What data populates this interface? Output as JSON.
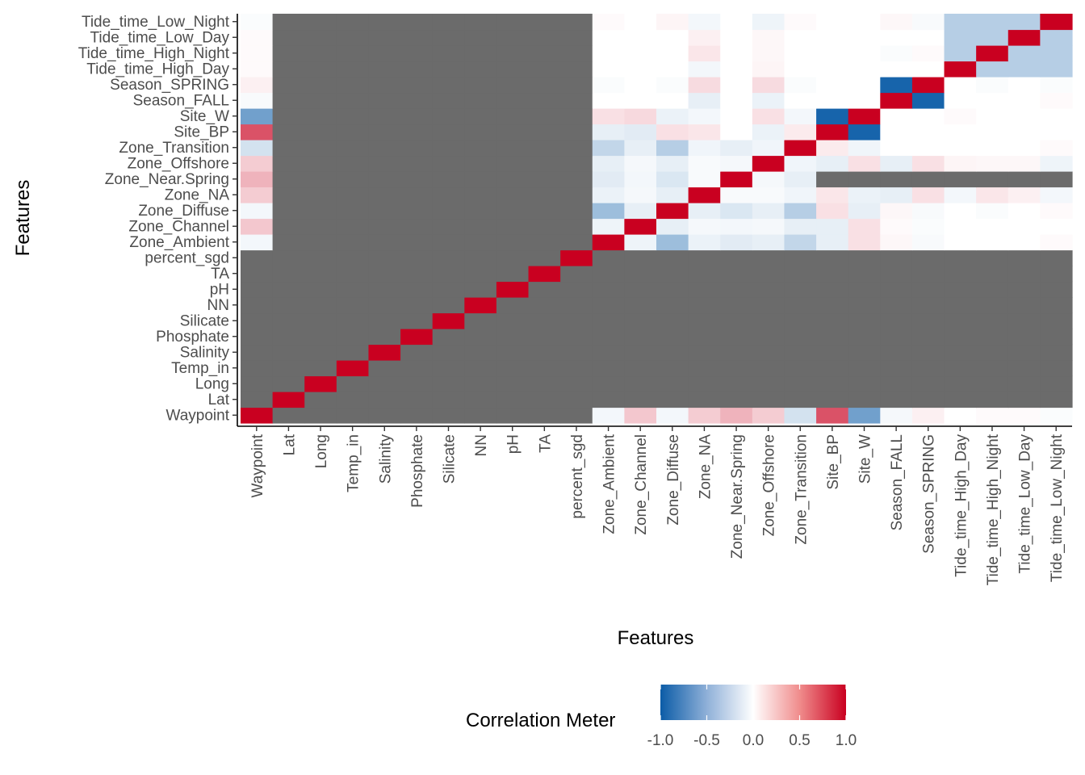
{
  "chart_data": {
    "type": "heatmap",
    "title": "",
    "xlabel": "Features",
    "ylabel": "Features",
    "x_categories": [
      "Waypoint",
      "Lat",
      "Long",
      "Temp_in",
      "Salinity",
      "Phosphate",
      "Silicate",
      "NN",
      "pH",
      "TA",
      "percent_sgd",
      "Zone_Ambient",
      "Zone_Channel",
      "Zone_Diffuse",
      "Zone_NA",
      "Zone_Near.Spring",
      "Zone_Offshore",
      "Zone_Transition",
      "Site_BP",
      "Site_W",
      "Season_FALL",
      "Season_SPRING",
      "Tide_time_High_Day",
      "Tide_time_High_Night",
      "Tide_time_Low_Day",
      "Tide_time_Low_Night"
    ],
    "y_categories": [
      "Waypoint",
      "Lat",
      "Long",
      "Temp_in",
      "Salinity",
      "Phosphate",
      "Silicate",
      "NN",
      "pH",
      "TA",
      "percent_sgd",
      "Zone_Ambient",
      "Zone_Channel",
      "Zone_Diffuse",
      "Zone_NA",
      "Zone_Near.Spring",
      "Zone_Offshore",
      "Zone_Transition",
      "Site_BP",
      "Site_W",
      "Season_FALL",
      "Season_SPRING",
      "Tide_time_High_Day",
      "Tide_time_High_Night",
      "Tide_time_Low_Day",
      "Tide_time_Low_Night"
    ],
    "na_color": "#6b6b6b",
    "na_note": "Cells with NA correlation drawn in dark grey; row/column order: y_categories bottom-to-top, x_categories left-to-right",
    "values": [
      [
        1.0,
        null,
        null,
        null,
        null,
        null,
        null,
        null,
        null,
        null,
        null,
        -0.05,
        0.22,
        -0.05,
        0.2,
        0.3,
        0.2,
        -0.18,
        0.68,
        -0.58,
        -0.04,
        0.06,
        0.0,
        0.02,
        0.02,
        -0.02
      ],
      [
        null,
        1.0,
        null,
        null,
        null,
        null,
        null,
        null,
        null,
        null,
        null,
        null,
        null,
        null,
        null,
        null,
        null,
        null,
        null,
        null,
        null,
        null,
        null,
        null,
        null,
        null
      ],
      [
        null,
        null,
        1.0,
        null,
        null,
        null,
        null,
        null,
        null,
        null,
        null,
        null,
        null,
        null,
        null,
        null,
        null,
        null,
        null,
        null,
        null,
        null,
        null,
        null,
        null,
        null
      ],
      [
        null,
        null,
        null,
        1.0,
        null,
        null,
        null,
        null,
        null,
        null,
        null,
        null,
        null,
        null,
        null,
        null,
        null,
        null,
        null,
        null,
        null,
        null,
        null,
        null,
        null,
        null
      ],
      [
        null,
        null,
        null,
        null,
        1.0,
        null,
        null,
        null,
        null,
        null,
        null,
        null,
        null,
        null,
        null,
        null,
        null,
        null,
        null,
        null,
        null,
        null,
        null,
        null,
        null,
        null
      ],
      [
        null,
        null,
        null,
        null,
        null,
        1.0,
        null,
        null,
        null,
        null,
        null,
        null,
        null,
        null,
        null,
        null,
        null,
        null,
        null,
        null,
        null,
        null,
        null,
        null,
        null,
        null
      ],
      [
        null,
        null,
        null,
        null,
        null,
        null,
        1.0,
        null,
        null,
        null,
        null,
        null,
        null,
        null,
        null,
        null,
        null,
        null,
        null,
        null,
        null,
        null,
        null,
        null,
        null,
        null
      ],
      [
        null,
        null,
        null,
        null,
        null,
        null,
        null,
        1.0,
        null,
        null,
        null,
        null,
        null,
        null,
        null,
        null,
        null,
        null,
        null,
        null,
        null,
        null,
        null,
        null,
        null,
        null
      ],
      [
        null,
        null,
        null,
        null,
        null,
        null,
        null,
        null,
        1.0,
        null,
        null,
        null,
        null,
        null,
        null,
        null,
        null,
        null,
        null,
        null,
        null,
        null,
        null,
        null,
        null,
        null
      ],
      [
        null,
        null,
        null,
        null,
        null,
        null,
        null,
        null,
        null,
        1.0,
        null,
        null,
        null,
        null,
        null,
        null,
        null,
        null,
        null,
        null,
        null,
        null,
        null,
        null,
        null,
        null
      ],
      [
        null,
        null,
        null,
        null,
        null,
        null,
        null,
        null,
        null,
        null,
        1.0,
        null,
        null,
        null,
        null,
        null,
        null,
        null,
        null,
        null,
        null,
        null,
        null,
        null,
        null,
        null
      ],
      [
        -0.05,
        null,
        null,
        null,
        null,
        null,
        null,
        null,
        null,
        null,
        null,
        1.0,
        -0.07,
        -0.4,
        -0.08,
        -0.12,
        -0.1,
        -0.25,
        -0.1,
        0.12,
        0.03,
        -0.03,
        0.0,
        0.0,
        0.0,
        0.02
      ],
      [
        0.22,
        null,
        null,
        null,
        null,
        null,
        null,
        null,
        null,
        null,
        null,
        -0.07,
        1.0,
        -0.1,
        -0.04,
        -0.05,
        -0.04,
        -0.1,
        -0.1,
        0.12,
        0.02,
        -0.02,
        0.0,
        0.0,
        0.0,
        0.0
      ],
      [
        -0.05,
        null,
        null,
        null,
        null,
        null,
        null,
        null,
        null,
        null,
        null,
        -0.4,
        -0.1,
        1.0,
        -0.1,
        -0.15,
        -0.1,
        -0.3,
        0.12,
        -0.1,
        0.03,
        -0.03,
        0.0,
        -0.02,
        0.0,
        0.02
      ],
      [
        0.2,
        null,
        null,
        null,
        null,
        null,
        null,
        null,
        null,
        null,
        null,
        -0.08,
        -0.04,
        -0.1,
        1.0,
        -0.03,
        -0.03,
        -0.06,
        0.1,
        -0.08,
        -0.1,
        0.12,
        -0.05,
        0.1,
        0.06,
        -0.05
      ],
      [
        0.3,
        null,
        null,
        null,
        null,
        null,
        null,
        null,
        null,
        null,
        null,
        -0.12,
        -0.05,
        -0.15,
        -0.03,
        1.0,
        -0.04,
        -0.1,
        null,
        null,
        null,
        null,
        null,
        null,
        null,
        null
      ],
      [
        0.2,
        null,
        null,
        null,
        null,
        null,
        null,
        null,
        null,
        null,
        null,
        -0.1,
        -0.04,
        -0.1,
        -0.03,
        -0.04,
        1.0,
        -0.06,
        -0.1,
        0.12,
        -0.1,
        0.12,
        0.04,
        0.03,
        0.03,
        -0.07
      ],
      [
        -0.18,
        null,
        null,
        null,
        null,
        null,
        null,
        null,
        null,
        null,
        null,
        -0.25,
        -0.1,
        -0.3,
        -0.06,
        -0.1,
        -0.06,
        1.0,
        0.08,
        -0.06,
        0.0,
        0.0,
        0.0,
        0.0,
        0.0,
        0.02
      ],
      [
        0.68,
        null,
        null,
        null,
        null,
        null,
        null,
        null,
        null,
        null,
        null,
        -0.1,
        -0.12,
        0.12,
        0.1,
        0.0,
        -0.08,
        0.08,
        1.0,
        -0.95,
        0.0,
        0.0,
        0.0,
        0.0,
        0.0,
        0.0
      ],
      [
        -0.58,
        null,
        null,
        null,
        null,
        null,
        null,
        null,
        null,
        null,
        null,
        0.12,
        0.15,
        -0.08,
        -0.05,
        0.0,
        0.12,
        -0.05,
        -0.95,
        1.0,
        0.0,
        0.0,
        0.02,
        0.0,
        0.0,
        0.0
      ],
      [
        -0.03,
        null,
        null,
        null,
        null,
        null,
        null,
        null,
        null,
        null,
        null,
        0.0,
        0.0,
        0.0,
        -0.1,
        0.0,
        -0.08,
        0.0,
        0.0,
        0.0,
        1.0,
        -0.95,
        0.0,
        0.0,
        0.0,
        0.02
      ],
      [
        0.06,
        null,
        null,
        null,
        null,
        null,
        null,
        null,
        null,
        null,
        null,
        -0.02,
        0.0,
        -0.02,
        0.14,
        0.0,
        0.14,
        -0.02,
        0.0,
        0.0,
        -0.95,
        1.0,
        0.0,
        -0.02,
        0.0,
        -0.02
      ],
      [
        0.02,
        null,
        null,
        null,
        null,
        null,
        null,
        null,
        null,
        null,
        null,
        0.0,
        0.0,
        0.0,
        -0.05,
        0.0,
        0.04,
        0.0,
        0.0,
        0.0,
        0.0,
        0.0,
        1.0,
        -0.3,
        -0.3,
        -0.3
      ],
      [
        0.02,
        null,
        null,
        null,
        null,
        null,
        null,
        null,
        null,
        null,
        null,
        0.0,
        0.0,
        0.0,
        0.1,
        0.0,
        0.03,
        0.0,
        0.0,
        0.0,
        -0.02,
        0.02,
        -0.3,
        1.0,
        -0.3,
        -0.3
      ],
      [
        0.02,
        null,
        null,
        null,
        null,
        null,
        null,
        null,
        null,
        null,
        null,
        0.0,
        0.0,
        0.0,
        0.06,
        0.0,
        0.03,
        0.0,
        0.0,
        0.0,
        0.0,
        0.0,
        -0.3,
        -0.3,
        1.0,
        -0.3
      ],
      [
        -0.02,
        null,
        null,
        null,
        null,
        null,
        null,
        null,
        null,
        null,
        null,
        0.02,
        0.0,
        0.04,
        -0.05,
        0.0,
        -0.07,
        0.02,
        0.0,
        0.0,
        0.03,
        -0.03,
        -0.3,
        -0.3,
        -0.3,
        1.0
      ]
    ],
    "legend": {
      "title": "Correlation Meter",
      "placement": "bottom",
      "ticks": [
        "-1.0",
        "-0.5",
        "0.0",
        "0.5",
        "1.0"
      ],
      "range": [
        -1,
        1
      ],
      "low_color": "#0b5ca7",
      "mid_color": "#ffffff",
      "high_color": "#c90020"
    },
    "grid": false
  }
}
